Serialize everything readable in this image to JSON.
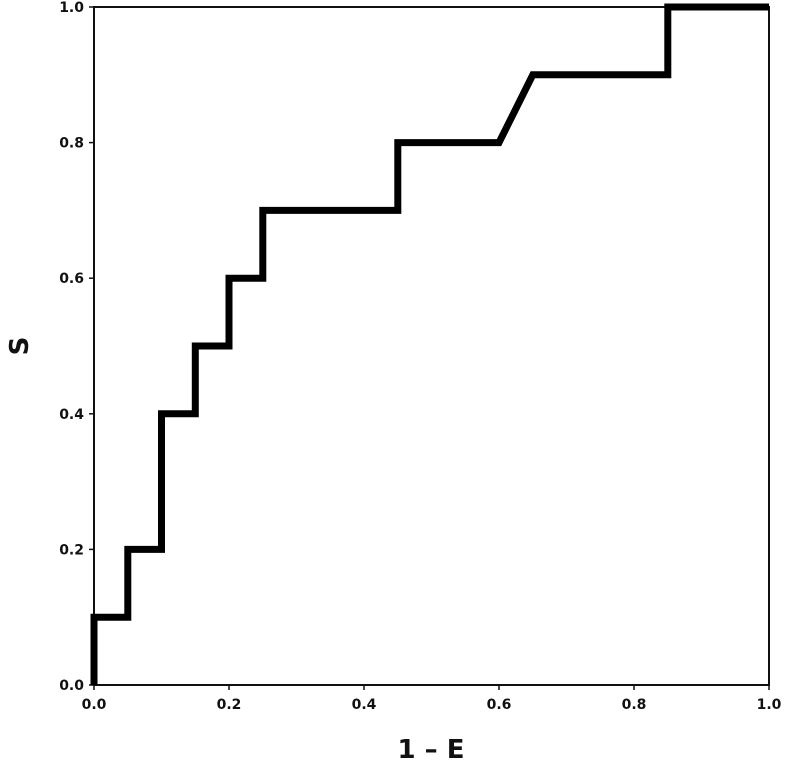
{
  "chart_data": {
    "type": "line",
    "title": "",
    "xlabel": "1 – E",
    "ylabel": "S",
    "xlim": [
      0,
      1
    ],
    "ylim": [
      0,
      1
    ],
    "grid": false,
    "x_ticks": [
      "0.0",
      "0.2",
      "0.4",
      "0.6",
      "0.8",
      "1.0"
    ],
    "y_ticks": [
      "0.0",
      "0.2",
      "0.4",
      "0.6",
      "0.8",
      "1.0"
    ],
    "series": [
      {
        "color": "#000000",
        "points": [
          [
            0.0,
            0.0
          ],
          [
            0.0,
            0.1
          ],
          [
            0.05,
            0.1
          ],
          [
            0.05,
            0.2
          ],
          [
            0.1,
            0.2
          ],
          [
            0.1,
            0.4
          ],
          [
            0.15,
            0.4
          ],
          [
            0.15,
            0.5
          ],
          [
            0.2,
            0.5
          ],
          [
            0.2,
            0.6
          ],
          [
            0.25,
            0.6
          ],
          [
            0.25,
            0.7
          ],
          [
            0.45,
            0.7
          ],
          [
            0.45,
            0.8
          ],
          [
            0.6,
            0.8
          ],
          [
            0.65,
            0.9
          ],
          [
            0.85,
            0.9
          ],
          [
            0.85,
            1.0
          ],
          [
            1.0,
            1.0
          ]
        ]
      }
    ]
  }
}
